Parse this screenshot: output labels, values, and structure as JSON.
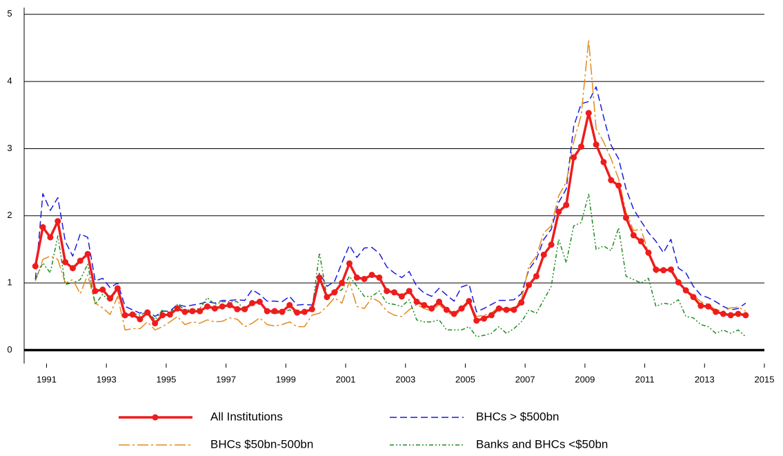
{
  "chart_data": {
    "type": "line",
    "x": [
      1990.625,
      1990.875,
      1991.125,
      1991.375,
      1991.625,
      1991.875,
      1992.125,
      1992.375,
      1992.625,
      1992.875,
      1993.125,
      1993.375,
      1993.625,
      1993.875,
      1994.125,
      1994.375,
      1994.625,
      1994.875,
      1995.125,
      1995.375,
      1995.625,
      1995.875,
      1996.125,
      1996.375,
      1996.625,
      1996.875,
      1997.125,
      1997.375,
      1997.625,
      1997.875,
      1998.125,
      1998.375,
      1998.625,
      1998.875,
      1999.125,
      1999.375,
      1999.625,
      1999.875,
      2000.125,
      2000.375,
      2000.625,
      2000.875,
      2001.125,
      2001.375,
      2001.625,
      2001.875,
      2002.125,
      2002.375,
      2002.625,
      2002.875,
      2003.125,
      2003.375,
      2003.625,
      2003.875,
      2004.125,
      2004.375,
      2004.625,
      2004.875,
      2005.125,
      2005.375,
      2005.625,
      2005.875,
      2006.125,
      2006.375,
      2006.625,
      2006.875,
      2007.125,
      2007.375,
      2007.625,
      2007.875,
      2008.125,
      2008.375,
      2008.625,
      2008.875,
      2009.125,
      2009.375,
      2009.625,
      2009.875,
      2010.125,
      2010.375,
      2010.625,
      2010.875,
      2011.125,
      2011.375,
      2011.625,
      2011.875,
      2012.125,
      2012.375,
      2012.625,
      2012.875,
      2013.125,
      2013.375,
      2013.625,
      2013.875,
      2014.125,
      2014.375
    ],
    "series": [
      {
        "name": "All Institutions",
        "color": "#ee1c1c",
        "values": [
          1.25,
          1.83,
          1.68,
          1.92,
          1.31,
          1.22,
          1.33,
          1.43,
          0.88,
          0.9,
          0.77,
          0.92,
          0.52,
          0.53,
          0.46,
          0.56,
          0.4,
          0.52,
          0.53,
          0.62,
          0.57,
          0.58,
          0.58,
          0.65,
          0.62,
          0.65,
          0.67,
          0.61,
          0.61,
          0.7,
          0.72,
          0.58,
          0.58,
          0.57,
          0.67,
          0.56,
          0.57,
          0.61,
          1.08,
          0.79,
          0.86,
          1.0,
          1.29,
          1.08,
          1.06,
          1.12,
          1.08,
          0.88,
          0.86,
          0.8,
          0.88,
          0.72,
          0.67,
          0.62,
          0.72,
          0.6,
          0.54,
          0.62,
          0.73,
          0.44,
          0.47,
          0.52,
          0.62,
          0.6,
          0.6,
          0.71,
          0.97,
          1.1,
          1.42,
          1.57,
          2.06,
          2.16,
          2.87,
          3.03,
          3.53,
          3.06,
          2.8,
          2.53,
          2.45,
          1.97,
          1.71,
          1.62,
          1.45,
          1.2,
          1.19,
          1.2,
          1.01,
          0.89,
          0.79,
          0.66,
          0.65,
          0.57,
          0.54,
          0.52,
          0.54,
          0.52
        ]
      },
      {
        "name": "BHCs > $500bn",
        "color": "#1a1adc",
        "values": [
          1.05,
          2.33,
          2.08,
          2.27,
          1.62,
          1.4,
          1.73,
          1.68,
          1.03,
          1.07,
          0.93,
          1.0,
          0.65,
          0.6,
          0.55,
          0.6,
          0.5,
          0.58,
          0.58,
          0.68,
          0.65,
          0.67,
          0.69,
          0.72,
          0.7,
          0.74,
          0.74,
          0.75,
          0.74,
          0.9,
          0.83,
          0.73,
          0.73,
          0.72,
          0.8,
          0.67,
          0.68,
          0.67,
          1.15,
          0.95,
          1.02,
          1.3,
          1.56,
          1.38,
          1.52,
          1.53,
          1.44,
          1.24,
          1.15,
          1.08,
          1.17,
          0.95,
          0.85,
          0.8,
          0.92,
          0.82,
          0.73,
          0.94,
          0.98,
          0.57,
          0.62,
          0.68,
          0.74,
          0.74,
          0.75,
          0.84,
          1.2,
          1.35,
          1.65,
          1.8,
          2.2,
          2.4,
          3.33,
          3.67,
          3.7,
          3.92,
          3.47,
          3.05,
          2.85,
          2.4,
          2.1,
          1.92,
          1.75,
          1.62,
          1.45,
          1.65,
          1.22,
          1.15,
          0.95,
          0.82,
          0.78,
          0.72,
          0.65,
          0.6,
          0.62,
          0.7
        ]
      },
      {
        "name": "BHCs $50bn-500bn",
        "color": "#e08a1e",
        "values": [
          1.03,
          1.35,
          1.4,
          1.35,
          1.0,
          1.05,
          0.84,
          1.12,
          0.7,
          0.63,
          0.53,
          0.8,
          0.3,
          0.32,
          0.32,
          0.42,
          0.3,
          0.35,
          0.42,
          0.5,
          0.38,
          0.42,
          0.4,
          0.45,
          0.42,
          0.43,
          0.48,
          0.46,
          0.35,
          0.4,
          0.48,
          0.38,
          0.36,
          0.38,
          0.42,
          0.35,
          0.35,
          0.52,
          0.55,
          0.65,
          0.78,
          0.7,
          1.02,
          0.65,
          0.62,
          0.78,
          0.72,
          0.58,
          0.52,
          0.5,
          0.6,
          0.68,
          0.62,
          0.58,
          0.68,
          0.56,
          0.52,
          0.58,
          0.72,
          0.5,
          0.52,
          0.55,
          0.65,
          0.62,
          0.63,
          0.75,
          1.25,
          1.4,
          1.75,
          1.85,
          2.3,
          2.5,
          3.1,
          3.5,
          4.62,
          3.3,
          3.1,
          2.85,
          2.55,
          2.05,
          1.78,
          1.8,
          1.45,
          1.15,
          1.22,
          1.17,
          1.0,
          0.9,
          0.82,
          0.72,
          0.68,
          0.6,
          0.58,
          0.63,
          0.64,
          0.58
        ]
      },
      {
        "name": "Banks and BHCs <$50bn",
        "color": "#1e8a1e",
        "values": [
          1.05,
          1.3,
          1.15,
          1.7,
          0.98,
          1.0,
          1.05,
          1.28,
          0.68,
          0.83,
          0.72,
          0.92,
          0.52,
          0.55,
          0.52,
          0.58,
          0.45,
          0.6,
          0.55,
          0.68,
          0.6,
          0.6,
          0.62,
          0.78,
          0.68,
          0.72,
          0.72,
          0.72,
          0.6,
          0.7,
          0.72,
          0.55,
          0.55,
          0.55,
          0.6,
          0.55,
          0.55,
          0.6,
          1.45,
          0.78,
          0.85,
          0.9,
          1.1,
          0.95,
          0.8,
          0.8,
          0.88,
          0.7,
          0.68,
          0.65,
          0.75,
          0.45,
          0.42,
          0.42,
          0.45,
          0.3,
          0.3,
          0.3,
          0.35,
          0.2,
          0.22,
          0.25,
          0.35,
          0.25,
          0.32,
          0.42,
          0.6,
          0.55,
          0.75,
          0.95,
          1.65,
          1.3,
          1.85,
          1.9,
          2.32,
          1.5,
          1.55,
          1.48,
          1.82,
          1.1,
          1.05,
          1.0,
          1.07,
          0.65,
          0.7,
          0.68,
          0.75,
          0.5,
          0.48,
          0.38,
          0.35,
          0.25,
          0.3,
          0.25,
          0.3,
          0.2
        ]
      }
    ],
    "xlim": [
      1990.25,
      2015
    ],
    "xticks": [
      1991,
      1993,
      1995,
      1997,
      1999,
      2001,
      2003,
      2005,
      2007,
      2009,
      2011,
      2013,
      2015
    ],
    "ylim": [
      -0.2,
      5.1
    ],
    "yticks": [
      0,
      1,
      2,
      3,
      4,
      5
    ],
    "grid": true,
    "legend": "bottom"
  }
}
